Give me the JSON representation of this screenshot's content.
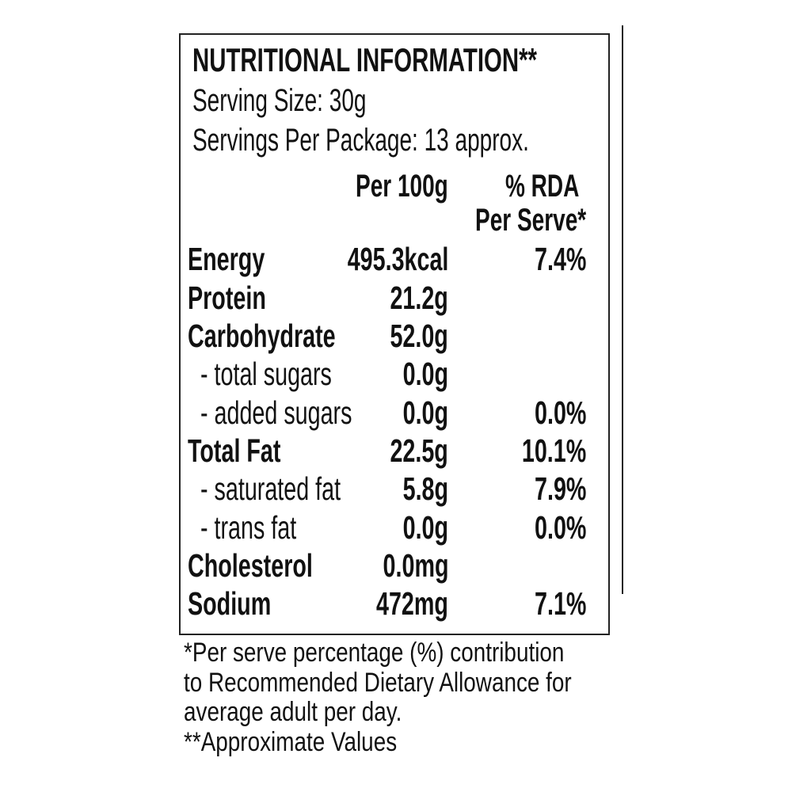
{
  "header": {
    "title": "NUTRITIONAL INFORMATION**",
    "serving_size": "Serving Size: 30g",
    "servings_per_package": "Servings Per Package: 13 approx."
  },
  "columns": {
    "per_100g": "Per 100g",
    "rda": [
      "% RDA",
      "Per Serve*"
    ]
  },
  "rows": [
    [
      "Energy",
      "495.3kcal",
      "7.4%"
    ],
    [
      "Protein",
      "21.2g",
      null
    ],
    [
      "Carbohydrate",
      "52.0g",
      null
    ],
    [
      "- total sugars",
      "0.0g",
      null
    ],
    [
      "- added sugars",
      "0.0g",
      "0.0%"
    ],
    [
      "Total Fat",
      "22.5g",
      "10.1%"
    ],
    [
      "- saturated fat",
      "5.8g",
      "7.9%"
    ],
    [
      "- trans fat",
      "0.0g",
      "0.0%"
    ],
    [
      "Cholesterol",
      "0.0mg",
      null
    ],
    [
      "Sodium",
      "472mg",
      "7.1%"
    ]
  ],
  "footnotes": [
    "*Per serve percentage (%) contribution",
    "to Recommended Dietary Allowance for",
    "average adult per day.",
    "**Approximate Values"
  ]
}
